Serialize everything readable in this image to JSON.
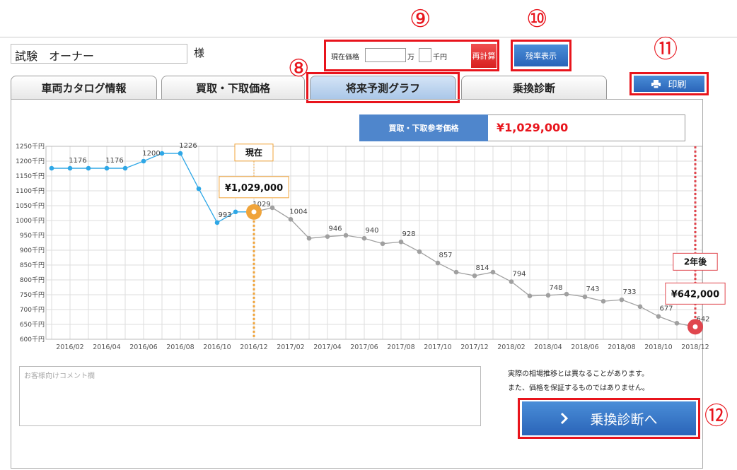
{
  "header": {
    "owner_name": "試験　オーナー",
    "honorific": "様"
  },
  "price_input": {
    "label": "現在価格",
    "unit_man": "万",
    "unit_sen": "千円",
    "button": "再計算"
  },
  "rate_button": "残率表示",
  "print_button": "印刷",
  "tabs": [
    "車両カタログ情報",
    "買取・下取価格",
    "将来予測グラフ",
    "乗換診断"
  ],
  "price_box": {
    "label": "買取・下取参考価格",
    "value": "¥1,029,000"
  },
  "chart_data": {
    "type": "line",
    "categories": [
      null,
      "2016/02",
      null,
      "2016/04",
      null,
      "2016/06",
      null,
      "2016/08",
      null,
      "2016/10",
      null,
      "2016/12",
      null,
      "2017/02",
      null,
      "2017/04",
      null,
      "2017/06",
      null,
      "2017/08",
      null,
      "2017/10",
      null,
      "2017/12",
      null,
      "2018/02",
      null,
      "2018/04",
      null,
      "2018/06",
      null,
      "2018/08",
      null,
      "2018/10",
      null,
      "2018/12"
    ],
    "values": [
      1176,
      1176,
      1176,
      1176,
      1176,
      1200,
      1226,
      1226,
      1107,
      993,
      1029,
      1029,
      1043,
      1004,
      940,
      946,
      950,
      940,
      922,
      928,
      895,
      857,
      826,
      814,
      826,
      794,
      746,
      748,
      752,
      743,
      728,
      733,
      710,
      677,
      654,
      642
    ],
    "value_labels": [
      null,
      "1176",
      null,
      "1176",
      null,
      "1200",
      null,
      "1226",
      null,
      "993",
      null,
      "1029",
      null,
      "1004",
      null,
      "946",
      null,
      "940",
      null,
      "928",
      null,
      "857",
      null,
      "814",
      null,
      "794",
      null,
      "748",
      null,
      "743",
      null,
      "733",
      null,
      "677",
      null,
      "642"
    ],
    "color": "#2ea7e6",
    "future_color": "#a0a0a0",
    "ylim": [
      600,
      1250
    ],
    "yticks": [
      {
        "value": 600,
        "label": "600千円"
      },
      {
        "value": 650,
        "label": "650千円"
      },
      {
        "value": 700,
        "label": "700千円"
      },
      {
        "value": 750,
        "label": "750千円"
      },
      {
        "value": 800,
        "label": "800千円"
      },
      {
        "value": 850,
        "label": "850千円"
      },
      {
        "value": 900,
        "label": "900千円"
      },
      {
        "value": 950,
        "label": "950千円"
      },
      {
        "value": 1000,
        "label": "1000千円"
      },
      {
        "value": 1050,
        "label": "1050千円"
      },
      {
        "value": 1100,
        "label": "1100千円"
      },
      {
        "value": 1150,
        "label": "1150千円"
      },
      {
        "value": 1200,
        "label": "1200千円"
      },
      {
        "value": 1250,
        "label": "1250千円"
      }
    ],
    "grid": true,
    "annotations": [
      {
        "label": "現在",
        "value_label": "¥1,029,000",
        "x": "2016/12",
        "color": "#f0a43a"
      },
      {
        "label": "2年後",
        "value_label": "¥642,000",
        "x": "2018/12",
        "color": "#e0464e"
      }
    ]
  },
  "comment_placeholder": "お客様向けコメント欄",
  "notes": [
    "実際の相場推移とは異なることがあります。",
    "また、価格を保証するものではありません。"
  ],
  "next_button": "乗換診断へ",
  "callouts": [
    "⑧",
    "⑨",
    "⑩",
    "⑪",
    "⑫"
  ]
}
